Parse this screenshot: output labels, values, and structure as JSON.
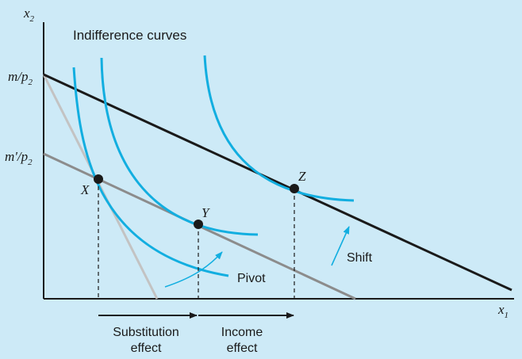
{
  "axes": {
    "y_label_base": "x",
    "y_label_sub": "2",
    "x_label_base": "x",
    "x_label_sub": "1"
  },
  "title": "Indifference curves",
  "intercepts": {
    "m_over_p2_num": "m/p",
    "m_over_p2_sub": "2",
    "mprime_over_p2_num": "m'/p",
    "mprime_over_p2_sub": "2"
  },
  "points": {
    "x": "X",
    "y": "Y",
    "z": "Z"
  },
  "annotations": {
    "pivot": "Pivot",
    "shift": "Shift"
  },
  "effects": {
    "substitution_line1": "Substitution",
    "substitution_line2": "effect",
    "income_line1": "Income",
    "income_line2": "effect"
  },
  "colors": {
    "background": "#cdeaf7",
    "curve": "#12aee0",
    "original_budget": "#1a1a1a",
    "new_budget": "#8c8c8c",
    "pivot_budget": "#c3c3c3",
    "arrow": "#12aee0"
  }
}
